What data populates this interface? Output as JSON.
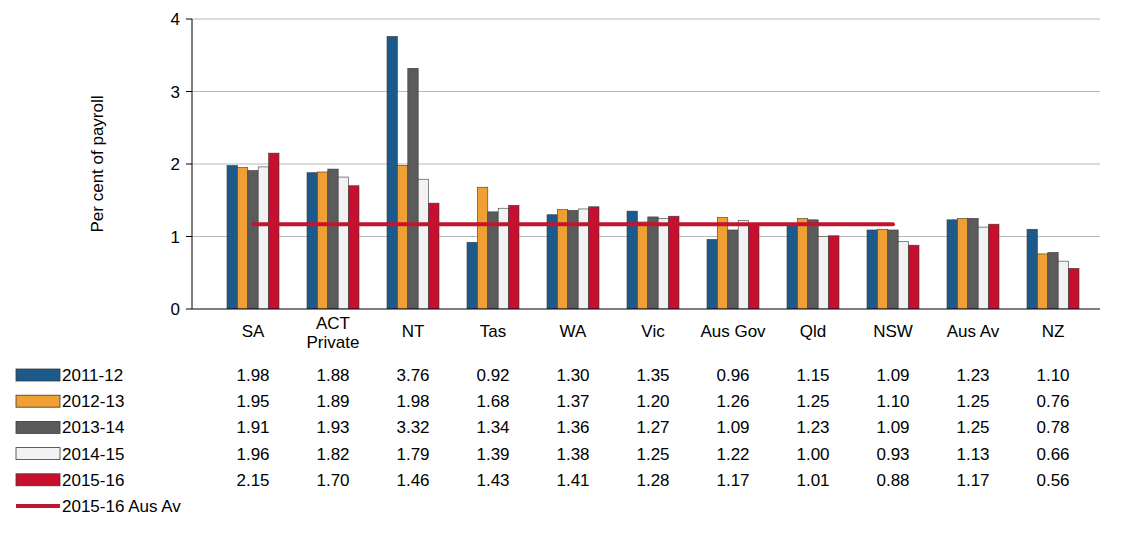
{
  "chart_data": {
    "type": "bar",
    "y_label": "Per cent of payroll",
    "categories": [
      "SA",
      "ACT Private",
      "NT",
      "Tas",
      "WA",
      "Vic",
      "Aus Gov",
      "Qld",
      "NSW",
      "Aus Av",
      "NZ"
    ],
    "series": [
      {
        "name": "2011-12",
        "color": "#1d5a8c",
        "values": [
          1.98,
          1.88,
          3.76,
          0.92,
          1.3,
          1.35,
          0.96,
          1.15,
          1.09,
          1.23,
          1.1
        ],
        "value_labels": [
          "1.98",
          "1.88",
          "3.76",
          "0.92",
          "1.30",
          "1.35",
          "0.96",
          "1.15",
          "1.09",
          "1.23",
          "1.10"
        ]
      },
      {
        "name": "2012-13",
        "color": "#f0a032",
        "values": [
          1.95,
          1.89,
          1.98,
          1.68,
          1.37,
          1.2,
          1.26,
          1.25,
          1.1,
          1.25,
          0.76
        ],
        "value_labels": [
          "1.95",
          "1.89",
          "1.98",
          "1.68",
          "1.37",
          "1.20",
          "1.26",
          "1.25",
          "1.10",
          "1.25",
          "0.76"
        ]
      },
      {
        "name": "2013-14",
        "color": "#5b5b5b",
        "values": [
          1.91,
          1.93,
          3.32,
          1.34,
          1.36,
          1.27,
          1.09,
          1.23,
          1.09,
          1.25,
          0.78
        ],
        "value_labels": [
          "1.91",
          "1.93",
          "3.32",
          "1.34",
          "1.36",
          "1.27",
          "1.09",
          "1.23",
          "1.09",
          "1.25",
          "0.78"
        ]
      },
      {
        "name": "2014-15",
        "color": "#f2f2f2",
        "values": [
          1.96,
          1.82,
          1.79,
          1.39,
          1.38,
          1.25,
          1.22,
          1.0,
          0.93,
          1.13,
          0.66
        ],
        "value_labels": [
          "1.96",
          "1.82",
          "1.79",
          "1.39",
          "1.38",
          "1.25",
          "1.22",
          "1.00",
          "0.93",
          "1.13",
          "0.66"
        ]
      },
      {
        "name": "2015-16",
        "color": "#c8102e",
        "values": [
          2.15,
          1.7,
          1.46,
          1.43,
          1.41,
          1.28,
          1.17,
          1.01,
          0.88,
          1.17,
          0.56
        ],
        "value_labels": [
          "2.15",
          "1.70",
          "1.46",
          "1.43",
          "1.41",
          "1.28",
          "1.17",
          "1.01",
          "0.88",
          "1.17",
          "0.56"
        ]
      },
      {
        "name": "2015-16 Aus Av",
        "type": "line",
        "line_style": "solid",
        "color": "#c0162f",
        "values": [
          1.17,
          1.17,
          1.17,
          1.17,
          1.17,
          1.17,
          1.17,
          1.17,
          1.17,
          null,
          null
        ]
      }
    ],
    "ylim": [
      0,
      4
    ],
    "yticks": [
      0,
      1,
      2,
      3,
      4
    ],
    "grid": true,
    "legend": "bottom"
  }
}
